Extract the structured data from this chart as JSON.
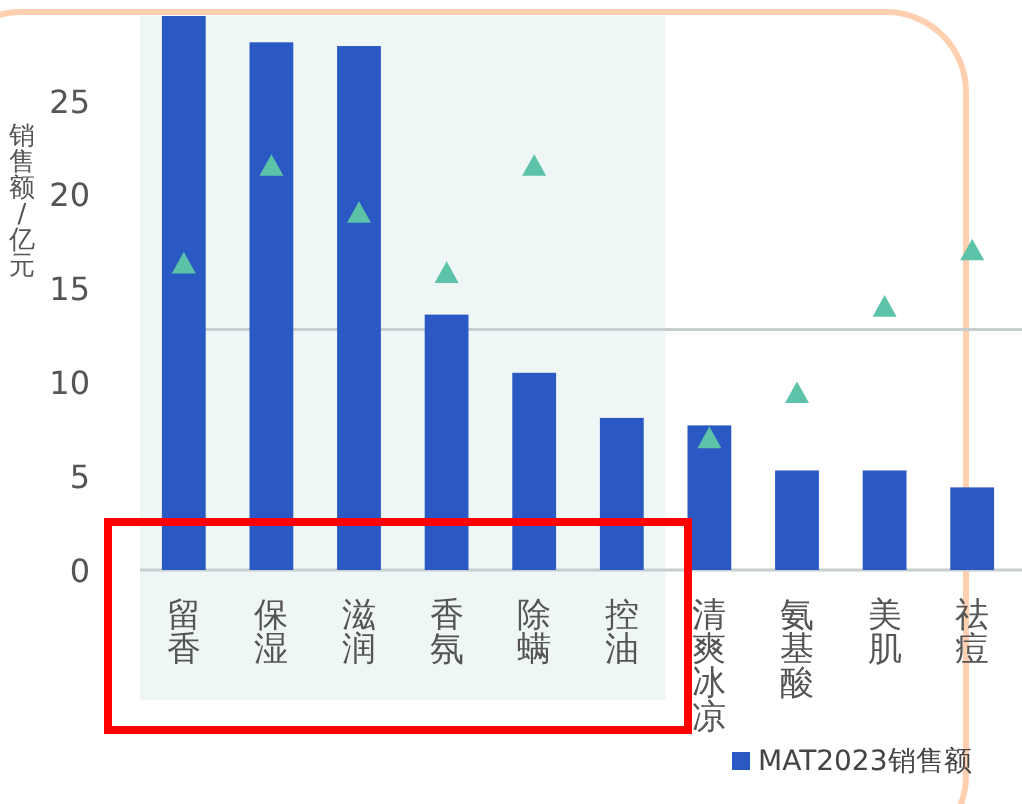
{
  "chart_data": {
    "type": "bar",
    "ylabel": "销售额/亿元",
    "legend": "bottom right",
    "grid": false,
    "categories": [
      "留香",
      "保湿",
      "滋润",
      "香氛",
      "除螨",
      "控油",
      "清爽冰凉",
      "氨基酸",
      "美肌",
      "祛痘"
    ],
    "ylim": [
      0,
      29.5
    ],
    "yticks": [
      0,
      5,
      10,
      15,
      20,
      25
    ],
    "series": [
      {
        "name": "MAT2023销售额",
        "color": "#2b59c3",
        "values": [
          29.5,
          28.1,
          27.9,
          13.6,
          10.5,
          8.1,
          7.7,
          5.3,
          5.3,
          4.4
        ]
      },
      {
        "type": "scatter",
        "marker": "triangle",
        "color": "#5cc3a8",
        "values": [
          16.3,
          21.5,
          19.0,
          15.8,
          21.5,
          null,
          7.0,
          9.4,
          14.0,
          17.0
        ]
      }
    ],
    "ref_lines": [
      {
        "axis": "y",
        "value": 12.8,
        "color": "#c8cdd0"
      }
    ],
    "bands": [
      {
        "axis": "x",
        "from": "留香",
        "to": "控油",
        "color": "#eef7f6"
      }
    ]
  }
}
